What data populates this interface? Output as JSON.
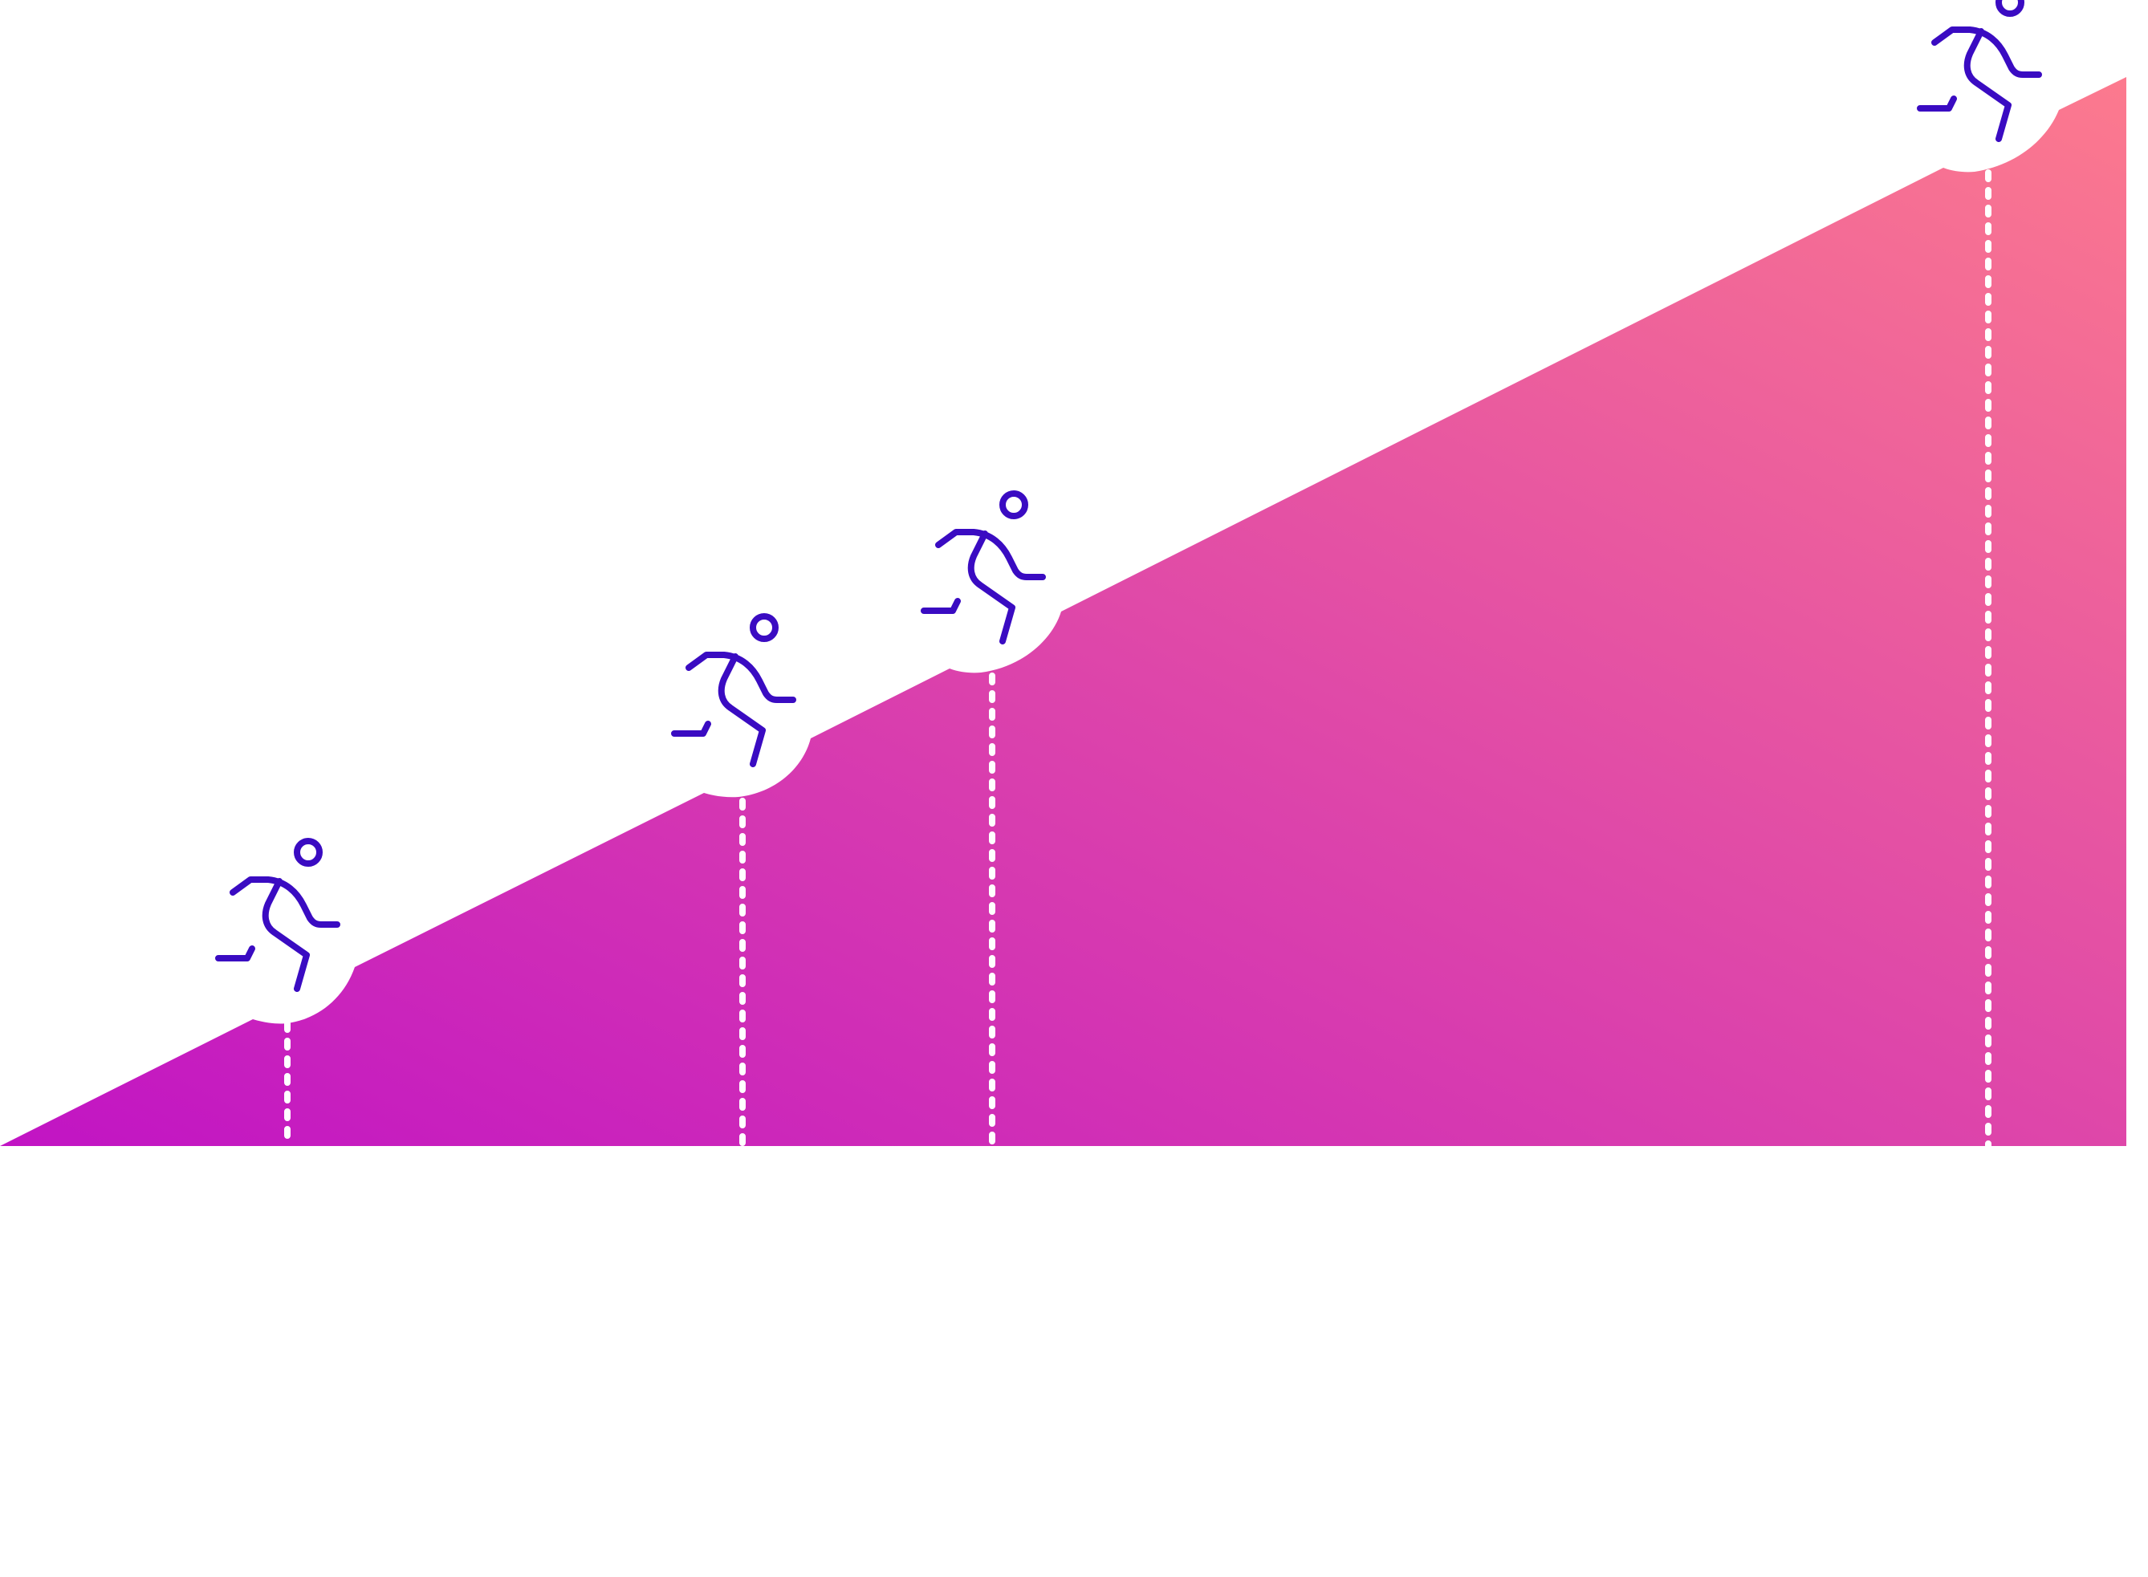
{
  "colors": {
    "background": "#ffffff",
    "gradient_start": "#c114c4",
    "gradient_end": "#fc7a8e",
    "runner_stroke": "#3a0bc2",
    "marker_line": "#ffffff"
  },
  "icons": [
    "running-person-icon",
    "running-person-icon",
    "running-person-icon",
    "running-person-icon"
  ],
  "markers": [
    {
      "name": "milestone-1"
    },
    {
      "name": "milestone-2"
    },
    {
      "name": "milestone-3"
    },
    {
      "name": "milestone-4"
    }
  ]
}
